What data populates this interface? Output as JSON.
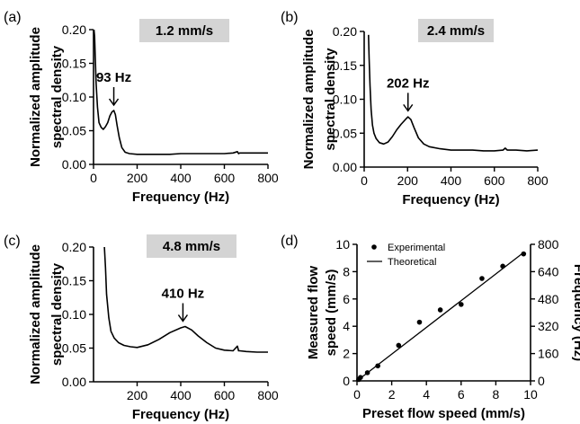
{
  "chart_data": [
    {
      "panel_label": "(a)",
      "type": "line",
      "speed_label": "1.2 mm/s",
      "xlabel": "Frequency (Hz)",
      "ylabel": [
        "Normalized amplitude",
        "spectral density"
      ],
      "xlim": [
        0,
        800
      ],
      "ylim": [
        0,
        0.2
      ],
      "xticks": [
        0,
        200,
        400,
        600,
        800
      ],
      "yticks": [
        0.0,
        0.05,
        0.1,
        0.15,
        0.2
      ],
      "ytick_labels": [
        "0.00",
        "0.05",
        "0.10",
        "0.15",
        "0.20"
      ],
      "peak": {
        "x": 93,
        "y": 0.08,
        "label": "93 Hz"
      },
      "x": [
        2,
        5,
        8,
        12,
        18,
        25,
        35,
        45,
        55,
        65,
        75,
        85,
        93,
        100,
        108,
        118,
        130,
        145,
        165,
        200,
        250,
        300,
        350,
        400,
        450,
        500,
        550,
        600,
        640,
        660,
        665,
        670,
        680,
        720,
        760,
        800
      ],
      "values": [
        0.2,
        0.19,
        0.16,
        0.12,
        0.085,
        0.062,
        0.055,
        0.052,
        0.056,
        0.062,
        0.072,
        0.078,
        0.08,
        0.074,
        0.058,
        0.04,
        0.025,
        0.018,
        0.016,
        0.015,
        0.015,
        0.015,
        0.015,
        0.016,
        0.016,
        0.016,
        0.016,
        0.016,
        0.017,
        0.019,
        0.016,
        0.017,
        0.017,
        0.017,
        0.017,
        0.017
      ]
    },
    {
      "panel_label": "(b)",
      "type": "line",
      "speed_label": "2.4 mm/s",
      "xlabel": "Frequency (Hz)",
      "ylabel": [
        "Normalized amplitude",
        "spectral density"
      ],
      "xlim": [
        0,
        800
      ],
      "ylim": [
        0,
        0.2
      ],
      "xticks": [
        0,
        200,
        400,
        600,
        800
      ],
      "yticks": [
        0.0,
        0.05,
        0.1,
        0.15,
        0.2
      ],
      "ytick_labels": [
        "0.00",
        "0.05",
        "0.10",
        "0.15",
        "0.20"
      ],
      "peak": {
        "x": 202,
        "y": 0.075,
        "label": "202 Hz"
      },
      "x": [
        20,
        23,
        27,
        32,
        38,
        45,
        55,
        70,
        90,
        110,
        130,
        150,
        170,
        190,
        202,
        215,
        230,
        250,
        275,
        300,
        350,
        400,
        450,
        500,
        550,
        600,
        640,
        650,
        660,
        700,
        750,
        800
      ],
      "values": [
        0.195,
        0.16,
        0.12,
        0.085,
        0.062,
        0.05,
        0.042,
        0.036,
        0.034,
        0.037,
        0.045,
        0.055,
        0.063,
        0.07,
        0.074,
        0.07,
        0.058,
        0.043,
        0.034,
        0.03,
        0.027,
        0.025,
        0.025,
        0.025,
        0.024,
        0.024,
        0.025,
        0.028,
        0.025,
        0.025,
        0.024,
        0.025
      ]
    },
    {
      "panel_label": "(c)",
      "type": "line",
      "speed_label": "4.8 mm/s",
      "xlabel": "Frequency (Hz)",
      "ylabel": [
        "Normalized amplitude",
        "spectral density"
      ],
      "xlim": [
        0,
        800
      ],
      "ylim": [
        0,
        0.2
      ],
      "xticks": [
        200,
        400,
        600,
        800
      ],
      "yticks": [
        0.0,
        0.05,
        0.1,
        0.15,
        0.2
      ],
      "ytick_labels": [
        "0.00",
        "0.05",
        "0.10",
        "0.15",
        "0.20"
      ],
      "peak": {
        "x": 410,
        "y": 0.082,
        "label": "410 Hz"
      },
      "x": [
        50,
        55,
        60,
        70,
        80,
        95,
        115,
        140,
        170,
        200,
        250,
        300,
        350,
        400,
        420,
        450,
        480,
        520,
        560,
        600,
        640,
        660,
        665,
        670,
        700,
        750,
        800
      ],
      "values": [
        0.2,
        0.17,
        0.13,
        0.095,
        0.075,
        0.065,
        0.058,
        0.054,
        0.052,
        0.051,
        0.055,
        0.063,
        0.073,
        0.08,
        0.082,
        0.077,
        0.068,
        0.058,
        0.05,
        0.047,
        0.046,
        0.053,
        0.046,
        0.046,
        0.045,
        0.044,
        0.044
      ]
    },
    {
      "panel_label": "(d)",
      "type": "scatter",
      "xlabel": "Preset flow speed (mm/s)",
      "ylabel": [
        "Measured flow",
        "speed (mm/s)"
      ],
      "ylabel_right": "Frequency (Hz)",
      "xlim": [
        0,
        10
      ],
      "ylim": [
        0,
        10
      ],
      "ylim_right": [
        0,
        800
      ],
      "xticks": [
        0,
        2,
        4,
        6,
        8,
        10
      ],
      "yticks": [
        0,
        2,
        4,
        6,
        8,
        10
      ],
      "yticks_right": [
        0,
        160,
        320,
        480,
        640,
        800
      ],
      "legend": {
        "position": "top-left",
        "entries": [
          "Experimental",
          "Theoretical"
        ]
      },
      "series": [
        {
          "name": "Experimental",
          "x": [
            0.1,
            0.2,
            0.6,
            1.2,
            2.4,
            3.6,
            4.8,
            6.0,
            7.2,
            8.4,
            9.6
          ],
          "values": [
            0.1,
            0.25,
            0.6,
            1.1,
            2.6,
            4.3,
            5.2,
            5.6,
            7.5,
            8.4,
            9.3
          ]
        },
        {
          "name": "Theoretical",
          "x": [
            0,
            9.6
          ],
          "values": [
            0,
            9.4
          ]
        }
      ]
    }
  ]
}
